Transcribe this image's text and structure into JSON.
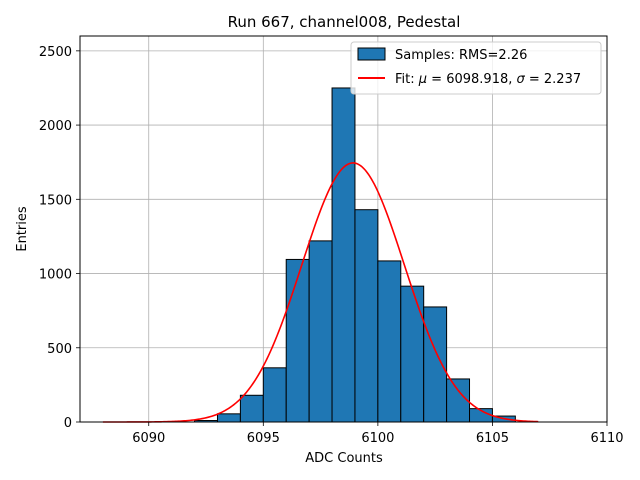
{
  "chart_data": {
    "type": "bar",
    "title": "Run 667, channel008, Pedestal",
    "xlabel": "ADC Counts",
    "ylabel": "Entries",
    "xlim": [
      6087,
      6110
    ],
    "ylim": [
      0,
      2600
    ],
    "xticks": [
      6090,
      6095,
      6100,
      6105,
      6110
    ],
    "xtick_labels": [
      "6090",
      "6095",
      "6100",
      "6105",
      "6110"
    ],
    "yticks": [
      0,
      500,
      1000,
      1500,
      2000,
      2500
    ],
    "ytick_labels": [
      "0",
      "500",
      "1000",
      "1500",
      "2000",
      "2500"
    ],
    "grid": true,
    "legend_position": "top-right",
    "histogram": {
      "name": "Samples: RMS=2.26",
      "color": "#1f77b4",
      "edgecolor": "#000000",
      "bins": [
        {
          "x0": 6092,
          "x1": 6093,
          "count": 10
        },
        {
          "x0": 6093,
          "x1": 6094,
          "count": 55
        },
        {
          "x0": 6094,
          "x1": 6095,
          "count": 180
        },
        {
          "x0": 6095,
          "x1": 6096,
          "count": 365
        },
        {
          "x0": 6096,
          "x1": 6097,
          "count": 1095
        },
        {
          "x0": 6097,
          "x1": 6098,
          "count": 1220
        },
        {
          "x0": 6098,
          "x1": 6099,
          "count": 2250
        },
        {
          "x0": 6099,
          "x1": 6100,
          "count": 1430
        },
        {
          "x0": 6100,
          "x1": 6101,
          "count": 1085
        },
        {
          "x0": 6101,
          "x1": 6102,
          "count": 915
        },
        {
          "x0": 6102,
          "x1": 6103,
          "count": 775
        },
        {
          "x0": 6103,
          "x1": 6104,
          "count": 290
        },
        {
          "x0": 6104,
          "x1": 6105,
          "count": 90
        },
        {
          "x0": 6105,
          "x1": 6106,
          "count": 40
        }
      ]
    },
    "fit": {
      "label_prefix": "Fit: ",
      "mu_symbol": "μ",
      "mu_text": " = 6098.918, ",
      "sigma_symbol": "σ",
      "sigma_text": " = 2.237",
      "color": "#ff0000",
      "mu": 6098.918,
      "sigma": 2.237,
      "amplitude": 1745,
      "x_range": [
        6088,
        6107
      ]
    }
  }
}
